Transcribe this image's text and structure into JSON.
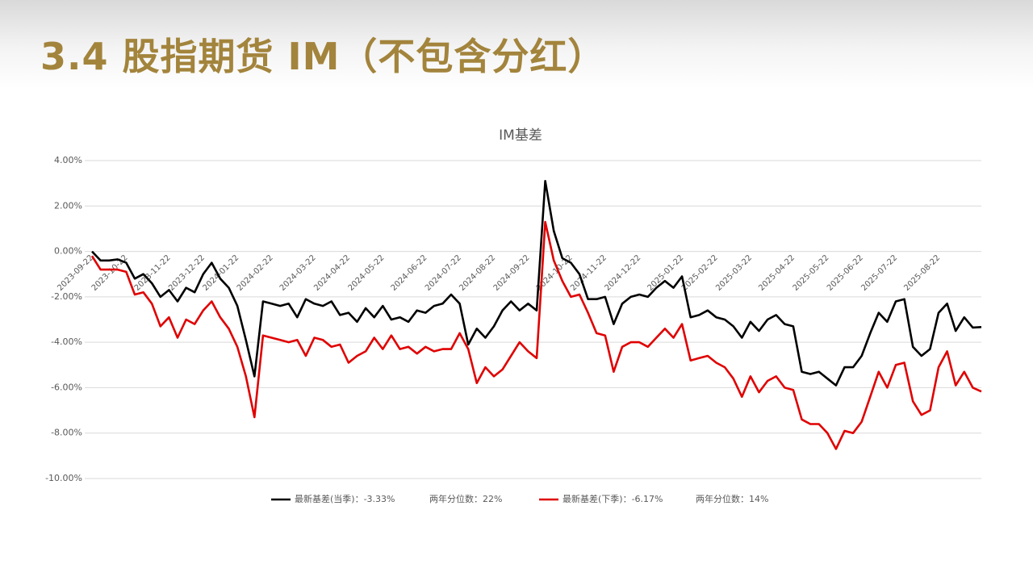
{
  "header": {
    "title": "3.4 股指期货 IM（不包含分红）"
  },
  "chart_data": {
    "type": "line",
    "title": "IM基差",
    "categories": [
      "2023-09-22",
      null,
      null,
      null,
      "2023-10-22",
      null,
      null,
      null,
      null,
      "2023-11-22",
      null,
      null,
      null,
      "2023-12-22",
      null,
      null,
      null,
      "2024-01-22",
      null,
      null,
      null,
      "2024-02-22",
      null,
      null,
      null,
      null,
      "2024-03-22",
      null,
      null,
      null,
      "2024-04-22",
      null,
      null,
      null,
      "2024-05-22",
      null,
      null,
      null,
      null,
      "2024-06-22",
      null,
      null,
      null,
      "2024-07-22",
      null,
      null,
      null,
      "2024-08-22",
      null,
      null,
      null,
      "2024-09-22",
      null,
      null,
      null,
      null,
      "2024-10-22",
      null,
      null,
      null,
      "2024-11-22",
      null,
      null,
      null,
      "2024-12-22",
      null,
      null,
      null,
      null,
      "2025-01-22",
      null,
      null,
      null,
      "2025-02-22",
      null,
      null,
      null,
      "2025-03-22",
      null,
      null,
      null,
      null,
      "2025-04-22",
      null,
      null,
      null,
      "2025-05-22",
      null,
      null,
      null,
      "2025-06-22",
      null,
      null,
      null,
      "2025-07-22",
      null,
      null,
      null,
      null,
      "2025-08-22",
      null,
      null,
      null,
      null,
      null
    ],
    "series": [
      {
        "name": "最新基差(当季)：-3.33%",
        "color": "#000000",
        "values": [
          0.0,
          -0.4,
          -0.4,
          -0.35,
          -0.5,
          -1.2,
          -1.0,
          -1.4,
          -2.0,
          -1.7,
          -2.2,
          -1.6,
          -1.8,
          -1.0,
          -0.5,
          -1.2,
          -1.6,
          -2.4,
          -3.9,
          -5.5,
          -2.2,
          -2.3,
          -2.4,
          -2.3,
          -2.9,
          -2.1,
          -2.3,
          -2.4,
          -2.2,
          -2.8,
          -2.7,
          -3.1,
          -2.5,
          -2.9,
          -2.4,
          -3.0,
          -2.9,
          -3.1,
          -2.6,
          -2.7,
          -2.4,
          -2.3,
          -1.9,
          -2.3,
          -4.1,
          -3.4,
          -3.8,
          -3.3,
          -2.6,
          -2.2,
          -2.6,
          -2.3,
          -2.6,
          3.1,
          0.9,
          -0.3,
          -0.5,
          -1.0,
          -2.1,
          -2.1,
          -2.0,
          -3.2,
          -2.3,
          -2.0,
          -1.9,
          -2.0,
          -1.6,
          -1.3,
          -1.6,
          -1.1,
          -2.9,
          -2.8,
          -2.6,
          -2.9,
          -3.0,
          -3.3,
          -3.8,
          -3.1,
          -3.5,
          -3.0,
          -2.8,
          -3.2,
          -3.3,
          -5.3,
          -5.4,
          -5.3,
          -5.6,
          -5.9,
          -5.1,
          -5.1,
          -4.6,
          -3.6,
          -2.7,
          -3.1,
          -2.2,
          -2.1,
          -4.2,
          -4.6,
          -4.3,
          -2.7,
          -2.3,
          -3.5,
          -2.9,
          -3.35,
          -3.33
        ]
      },
      {
        "name": "最新基差(下季)：-6.17%",
        "color": "#e00000",
        "values": [
          -0.2,
          -0.8,
          -0.8,
          -0.8,
          -0.9,
          -1.9,
          -1.8,
          -2.3,
          -3.3,
          -2.9,
          -3.8,
          -3.0,
          -3.2,
          -2.6,
          -2.2,
          -2.9,
          -3.4,
          -4.2,
          -5.5,
          -7.3,
          -3.7,
          -3.8,
          -3.9,
          -4.0,
          -3.9,
          -4.6,
          -3.8,
          -3.9,
          -4.2,
          -4.1,
          -4.9,
          -4.6,
          -4.4,
          -3.8,
          -4.3,
          -3.7,
          -4.3,
          -4.2,
          -4.5,
          -4.2,
          -4.4,
          -4.3,
          -4.3,
          -3.6,
          -4.3,
          -5.8,
          -5.1,
          -5.5,
          -5.2,
          -4.6,
          -4.0,
          -4.4,
          -4.7,
          1.3,
          -0.4,
          -1.3,
          -2.0,
          -1.9,
          -2.7,
          -3.6,
          -3.7,
          -5.3,
          -4.2,
          -4.0,
          -4.0,
          -4.2,
          -3.8,
          -3.4,
          -3.8,
          -3.2,
          -4.8,
          -4.7,
          -4.6,
          -4.9,
          -5.1,
          -5.6,
          -6.4,
          -5.5,
          -6.2,
          -5.7,
          -5.5,
          -6.0,
          -6.1,
          -7.4,
          -7.6,
          -7.6,
          -8.0,
          -8.7,
          -7.9,
          -8.0,
          -7.5,
          -6.4,
          -5.3,
          -6.0,
          -5.0,
          -4.9,
          -6.6,
          -7.2,
          -7.0,
          -5.1,
          -4.4,
          -5.9,
          -5.3,
          -6.0,
          -6.17
        ]
      }
    ],
    "legend_notes": [
      "两年分位数：22%",
      "两年分位数：14%"
    ],
    "legend": "bottom",
    "grid": true,
    "ylim": [
      -10,
      4
    ],
    "yticks": [
      {
        "value": -10,
        "label": "-10.00%"
      },
      {
        "value": -8,
        "label": "-8.00%"
      },
      {
        "value": -6,
        "label": "-6.00%"
      },
      {
        "value": -4,
        "label": "-4.00%"
      },
      {
        "value": -2,
        "label": "-2.00%"
      },
      {
        "value": 0,
        "label": "0.00%"
      },
      {
        "value": 2,
        "label": "2.00%"
      },
      {
        "value": 4,
        "label": "4.00%"
      }
    ]
  }
}
